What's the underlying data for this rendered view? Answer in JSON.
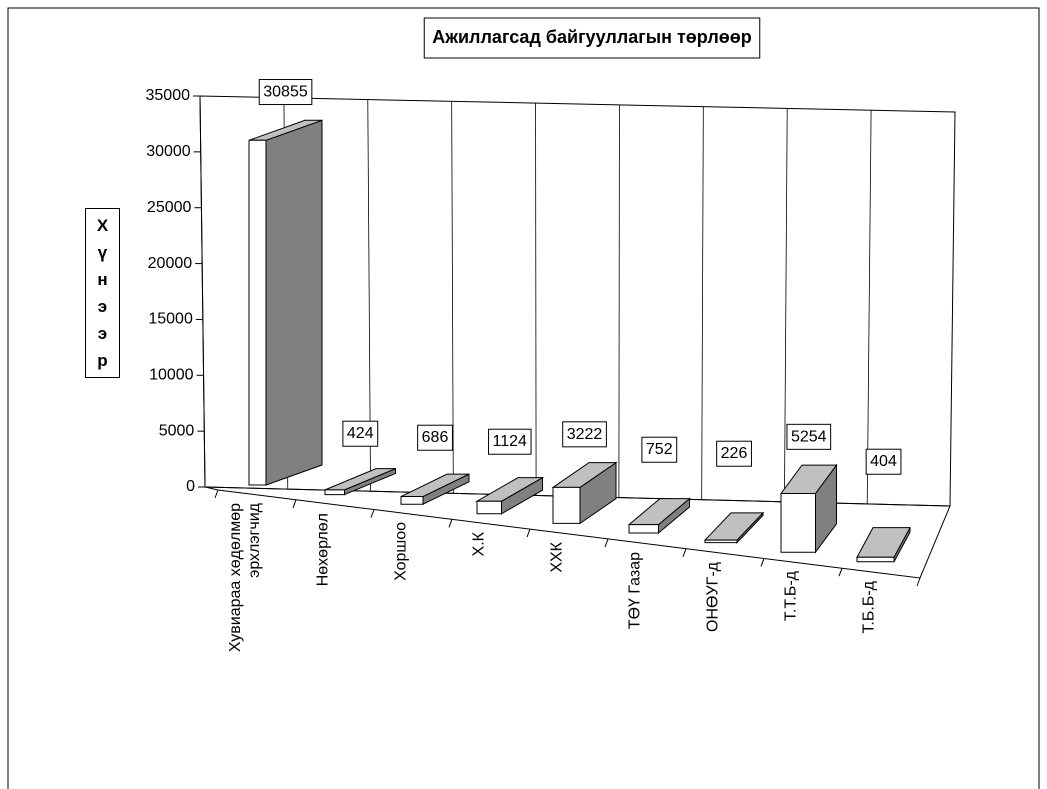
{
  "chart_data": {
    "type": "bar3d",
    "title": "Ажиллагсад байгууллагын төрлөөр",
    "y_label": "Хүнээр",
    "categories": [
      "Хувиараа хөдөлмөр\nэрхлэгчид",
      "Нөхөрлөл",
      "Хоршоо",
      "Х.К",
      "ХХК",
      "ТӨҮ Газар",
      "ОНӨУГ-д",
      "Т.Т.Б-д",
      "Т.Б.Б-д"
    ],
    "values": [
      30855,
      424,
      686,
      1124,
      3222,
      752,
      226,
      5254,
      404
    ],
    "colors": {
      "front": "#ffffff",
      "side": "#808080",
      "top": "#c0c0c0"
    },
    "ylim": [
      0,
      35000
    ],
    "yticks": [
      0,
      5000,
      10000,
      15000,
      20000,
      25000,
      30000,
      35000
    ]
  }
}
